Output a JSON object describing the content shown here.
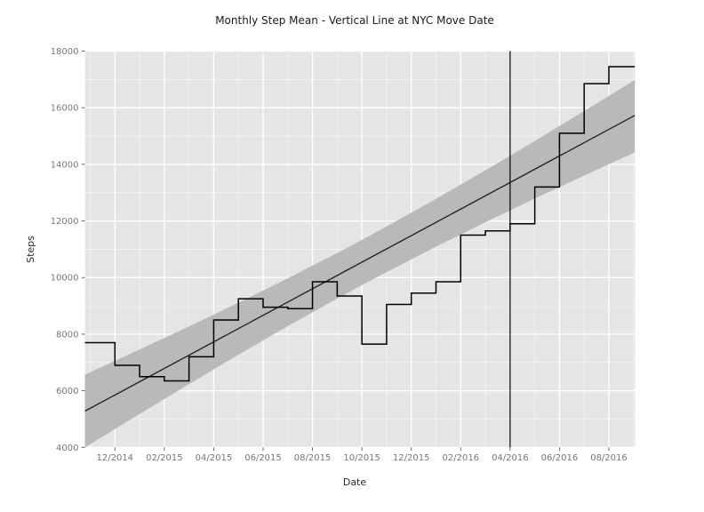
{
  "figure": {
    "title": "Monthly Step Mean - Vertical Line at NYC Move Date",
    "xlabel": "Date",
    "ylabel": "Steps"
  },
  "chart_data": {
    "type": "line",
    "subtype": "step-plot with linear trend, confidence band and event vline",
    "title": "Monthly Step Mean - Vertical Line at NYC Move Date",
    "xlabel": "Date",
    "ylabel": "Steps",
    "ylim": [
      4000,
      18000
    ],
    "grid": {
      "major": "both",
      "minor": "both",
      "color": "#ffffff"
    },
    "legend": false,
    "x_tick_labels": [
      "12/2014",
      "02/2015",
      "04/2015",
      "06/2015",
      "08/2015",
      "10/2015",
      "12/2015",
      "02/2016",
      "04/2016",
      "06/2016",
      "08/2016"
    ],
    "y_tick_labels": [
      "4000",
      "6000",
      "8000",
      "10000",
      "12000",
      "14000",
      "16000",
      "18000"
    ],
    "months": [
      "11/2014",
      "12/2014",
      "01/2015",
      "02/2015",
      "03/2015",
      "04/2015",
      "05/2015",
      "06/2015",
      "07/2015",
      "08/2015",
      "09/2015",
      "10/2015",
      "11/2015",
      "12/2015",
      "01/2016",
      "02/2016",
      "03/2016",
      "04/2016",
      "05/2016",
      "06/2016",
      "07/2016",
      "08/2016"
    ],
    "series": [
      {
        "name": "monthly_step_mean",
        "type": "step",
        "step_style": "post",
        "values": [
          7700,
          6900,
          6500,
          6350,
          7200,
          8500,
          9250,
          8950,
          8900,
          9850,
          9350,
          7650,
          9050,
          9450,
          9850,
          11500,
          11650,
          11900,
          13200,
          15100,
          16850,
          17450
        ]
      },
      {
        "name": "linear_trend",
        "type": "line",
        "value_at_left_edge": 5280,
        "value_at_right_edge": 15730
      },
      {
        "name": "confidence_band",
        "type": "band",
        "m": [
          -0.22,
          0,
          2,
          4,
          6,
          8,
          10,
          11,
          12,
          14,
          16,
          18,
          20,
          22,
          22.05
        ],
        "lower": [
          3992,
          4110,
          5180,
          6237,
          7273,
          8283,
          9258,
          9731,
          10194,
          11091,
          11953,
          12789,
          13604,
          14406,
          14426
        ],
        "upper": [
          6568,
          6656,
          7458,
          8273,
          9109,
          9971,
          10868,
          11331,
          11804,
          12779,
          13789,
          14825,
          15882,
          16952,
          16978
        ]
      }
    ],
    "vline": {
      "x": "04/2016",
      "meaning": "NYC Move Date"
    }
  },
  "colors": {
    "panel_bg": "#e5e5e5",
    "grid_major": "#ffffff",
    "grid_minor": "#ffffff",
    "band": "#b7b9ba",
    "step_line": "#000000",
    "trend_line": "#1a1a1a",
    "vline": "#000000",
    "tick_mark": "#555555",
    "tick_label": "#767676",
    "title_text": "#1a1a1a"
  }
}
